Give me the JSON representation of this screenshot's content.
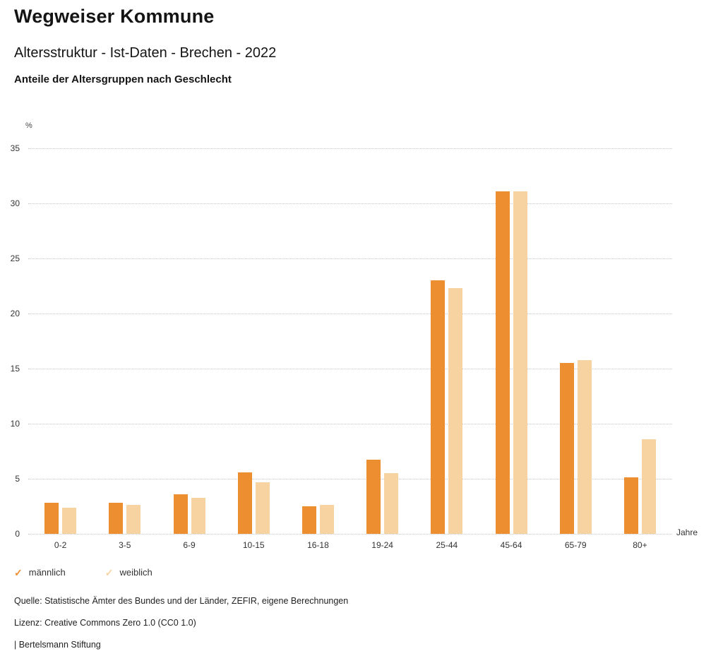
{
  "header": {
    "title": "Wegweiser Kommune",
    "subtitle": "Altersstruktur - Ist-Daten - Brechen - 2022",
    "chart_heading": "Anteile der Altersgruppen nach Geschlecht"
  },
  "chart_data": {
    "type": "bar",
    "title": "Anteile der Altersgruppen nach Geschlecht",
    "categories": [
      "0-2",
      "3-5",
      "6-9",
      "10-15",
      "16-18",
      "19-24",
      "25-44",
      "45-64",
      "65-79",
      "80+"
    ],
    "series": [
      {
        "name": "männlich",
        "color": "#ED8E30",
        "values": [
          2.8,
          2.8,
          3.6,
          5.6,
          2.5,
          6.7,
          23.0,
          31.1,
          15.5,
          5.1
        ]
      },
      {
        "name": "weiblich",
        "color": "#F8D3A2",
        "values": [
          2.4,
          2.6,
          3.3,
          4.7,
          2.6,
          5.5,
          22.3,
          31.1,
          15.8,
          8.6
        ]
      }
    ],
    "ylabel": "%",
    "xlabel": "Jahre",
    "ylim": [
      0,
      35
    ],
    "ytick_step": 5,
    "grid": "horizontal-dotted",
    "legend_position": "bottom-left"
  },
  "legend": {
    "items": [
      {
        "label": "männlich",
        "color": "#ED8E30",
        "icon": "check"
      },
      {
        "label": "weiblich",
        "color": "#F8D3A2",
        "icon": "check"
      }
    ]
  },
  "footer": {
    "source": "Quelle: Statistische Ämter des Bundes und der Länder, ZEFIR, eigene Berechnungen",
    "license": "Lizenz: Creative Commons Zero 1.0 (CC0 1.0)",
    "attribution": "| Bertelsmann Stiftung"
  }
}
